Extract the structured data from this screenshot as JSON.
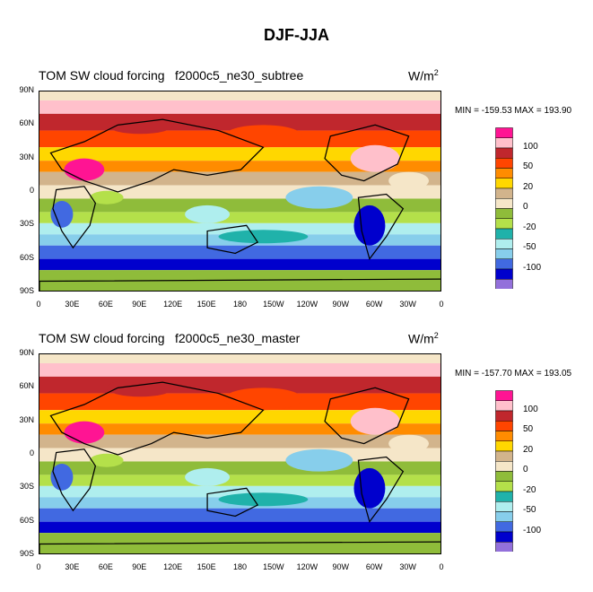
{
  "title": "DJF-JJA",
  "chart_data": [
    {
      "type": "heatmap",
      "left_title": "TOM SW cloud forcing",
      "center_title": "f2000c5_ne30_subtree",
      "units": "W/m",
      "units_sup": "2",
      "minmax": "MIN = -159.53 MAX = 193.90",
      "min": -159.53,
      "max": 193.9,
      "ylabels": [
        "90N",
        "60N",
        "30N",
        "0",
        "30S",
        "60S",
        "90S"
      ],
      "xlabels": [
        "0",
        "30E",
        "60E",
        "90E",
        "120E",
        "150E",
        "180",
        "150W",
        "120W",
        "90W",
        "60W",
        "30W",
        "0"
      ]
    },
    {
      "type": "heatmap",
      "left_title": "TOM SW cloud forcing",
      "center_title": "f2000c5_ne30_master",
      "units": "W/m",
      "units_sup": "2",
      "minmax": "MIN = -157.70 MAX = 193.05",
      "min": -157.7,
      "max": 193.05,
      "ylabels": [
        "90N",
        "60N",
        "30N",
        "0",
        "30S",
        "60S",
        "90S"
      ],
      "xlabels": [
        "0",
        "30E",
        "60E",
        "90E",
        "120E",
        "150E",
        "180",
        "150W",
        "120W",
        "90W",
        "60W",
        "30W",
        "0"
      ]
    }
  ],
  "colorbar": {
    "colors": [
      "#ff1493",
      "#ffc0cb",
      "#c0272d",
      "#ff4500",
      "#ff8c00",
      "#ffd700",
      "#d2b48c",
      "#f5e6c8",
      "#8fbc3a",
      "#b4e04a",
      "#20b2aa",
      "#afeeee",
      "#87ceeb",
      "#4169e1",
      "#0000cd",
      "#9370db"
    ],
    "labels": [
      "100",
      "50",
      "20",
      "0",
      "-20",
      "-50",
      "-100"
    ]
  }
}
